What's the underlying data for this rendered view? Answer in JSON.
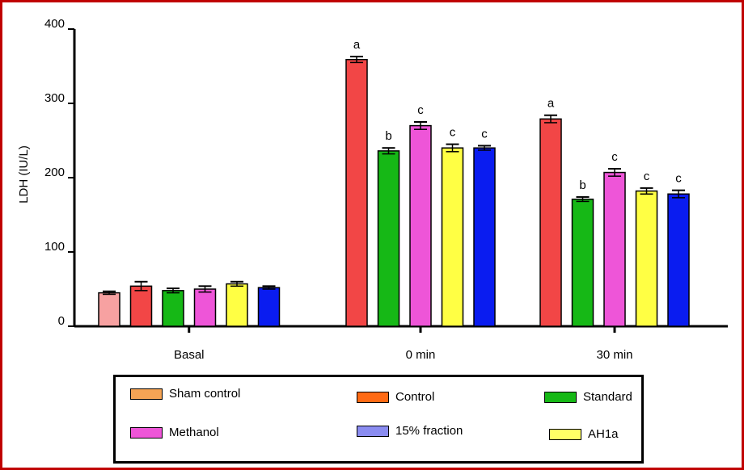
{
  "chart_data": {
    "type": "bar",
    "title": "",
    "xlabel": "",
    "ylabel": "LDH (IU/L)",
    "ylim": [
      0,
      400
    ],
    "yticks": [
      "0",
      "100",
      "200",
      "300",
      "400"
    ],
    "groups": [
      {
        "label": "Basal",
        "bars": [
          {
            "color": "#f7a1a1",
            "value": 45,
            "err": 2,
            "annot": ""
          },
          {
            "color": "#f24646",
            "value": 54,
            "err": 6,
            "annot": ""
          },
          {
            "color": "#16b816",
            "value": 48,
            "err": 3,
            "annot": ""
          },
          {
            "color": "#ee55d8",
            "value": 50,
            "err": 4,
            "annot": ""
          },
          {
            "color": "#ffff44",
            "value": 57,
            "err": 3,
            "annot": ""
          },
          {
            "color": "#0a1cf0",
            "value": 52,
            "err": 2,
            "annot": ""
          }
        ]
      },
      {
        "label": "0 min",
        "bars": [
          {
            "color": "#f24646",
            "value": 359,
            "err": 4,
            "annot": "a"
          },
          {
            "color": "#16b816",
            "value": 236,
            "err": 4,
            "annot": "b"
          },
          {
            "color": "#ee55d8",
            "value": 270,
            "err": 5,
            "annot": "c"
          },
          {
            "color": "#ffff44",
            "value": 240,
            "err": 5,
            "annot": "c"
          },
          {
            "color": "#0a1cf0",
            "value": 240,
            "err": 3,
            "annot": "c"
          }
        ]
      },
      {
        "label": "30 min",
        "bars": [
          {
            "color": "#f24646",
            "value": 279,
            "err": 5,
            "annot": "a"
          },
          {
            "color": "#16b816",
            "value": 171,
            "err": 3,
            "annot": "b"
          },
          {
            "color": "#ee55d8",
            "value": 207,
            "err": 5,
            "annot": "c"
          },
          {
            "color": "#ffff44",
            "value": 182,
            "err": 4,
            "annot": "c"
          },
          {
            "color": "#0a1cf0",
            "value": 178,
            "err": 5,
            "annot": "c"
          }
        ]
      }
    ],
    "legend": [
      {
        "label": "Sham control",
        "color": "#f5a455"
      },
      {
        "label": "Control",
        "color": "#ff6a14"
      },
      {
        "label": "Standard",
        "color": "#16b816"
      },
      {
        "label": "Methanol",
        "color": "#ee55d8"
      },
      {
        "label": "15% fraction",
        "color": "#8a8cf0"
      },
      {
        "label": "AH1a",
        "color": "#ffff66"
      }
    ]
  }
}
